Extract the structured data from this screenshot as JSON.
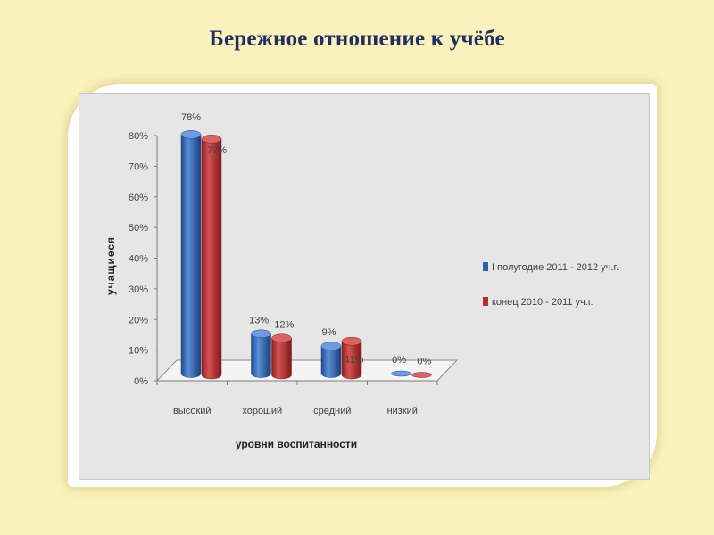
{
  "slide": {
    "title": "Бережное отношение к учёбе"
  },
  "colors": {
    "background": "#fbf2bd",
    "series1": "#2f5fa8",
    "series2": "#b42e2e"
  },
  "chart_data": {
    "type": "bar",
    "title": "",
    "xlabel": "уровни воспитанности",
    "ylabel": "учащиеся",
    "ylim": [
      0,
      80
    ],
    "y_ticks": [
      "0%",
      "10%",
      "20%",
      "30%",
      "40%",
      "50%",
      "60%",
      "70%",
      "80%"
    ],
    "categories": [
      "высокий",
      "хороший",
      "средний",
      "низкий"
    ],
    "series": [
      {
        "name": "I полугодие 2011 - 2012 уч.г.",
        "values": [
          78,
          13,
          9,
          0
        ],
        "labels": [
          "78%",
          "13%",
          "9%",
          "0%"
        ]
      },
      {
        "name": "конец 2010 - 2011 уч.г.",
        "values": [
          77,
          12,
          11,
          0
        ],
        "labels": [
          "77%",
          "12%",
          "11%",
          "0%"
        ]
      }
    ],
    "grid": false,
    "legend_position": "right",
    "style": "3d-cylinder"
  }
}
